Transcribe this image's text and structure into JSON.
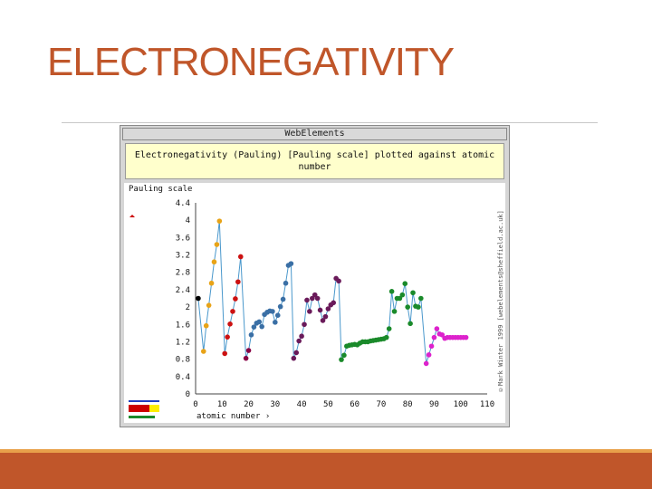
{
  "slide": {
    "title": "ELECTRONEGATIVITY"
  },
  "figure": {
    "header": "WebElements",
    "caption_line1": "Electronegativity (Pauling) [Pauling scale] plotted against atomic",
    "caption_line2": "number",
    "credit": "©Mark Winter 1999 [webelements@sheffield.ac.uk]"
  },
  "chart_data": {
    "type": "line",
    "ylabel": "Pauling scale",
    "xlabel": "atomic number ›",
    "xlim": [
      0,
      110
    ],
    "ylim": [
      0,
      4.4
    ],
    "x_ticks": [
      "0",
      "10",
      "20",
      "30",
      "40",
      "50",
      "60",
      "70",
      "80",
      "90",
      "100",
      "110"
    ],
    "y_ticks": [
      "0",
      "0.4",
      "0.8",
      "1.2",
      "1.6",
      "2",
      "2.4",
      "2.8",
      "3.2",
      "3.6",
      "4",
      "4.4"
    ],
    "line_color": "#4a98cc",
    "series": [
      {
        "color": "#000000",
        "points": [
          [
            1,
            2.2
          ]
        ]
      },
      {
        "color": "#e8a317",
        "points": [
          [
            3,
            0.98
          ],
          [
            4,
            1.57
          ],
          [
            5,
            2.04
          ],
          [
            6,
            2.55
          ],
          [
            7,
            3.04
          ],
          [
            8,
            3.44
          ],
          [
            9,
            3.98
          ]
        ]
      },
      {
        "color": "#cc1111",
        "points": [
          [
            11,
            0.93
          ],
          [
            12,
            1.31
          ],
          [
            13,
            1.61
          ],
          [
            14,
            1.9
          ],
          [
            15,
            2.19
          ],
          [
            16,
            2.58
          ],
          [
            17,
            3.16
          ]
        ]
      },
      {
        "color": "#880044",
        "points": [
          [
            19,
            0.82
          ],
          [
            20,
            1.0
          ]
        ]
      },
      {
        "color": "#3a6fa5",
        "points": [
          [
            21,
            1.36
          ],
          [
            22,
            1.54
          ],
          [
            23,
            1.63
          ],
          [
            24,
            1.66
          ],
          [
            25,
            1.55
          ],
          [
            26,
            1.83
          ],
          [
            27,
            1.88
          ],
          [
            28,
            1.91
          ],
          [
            29,
            1.9
          ],
          [
            30,
            1.65
          ],
          [
            31,
            1.81
          ],
          [
            32,
            2.01
          ],
          [
            33,
            2.18
          ],
          [
            34,
            2.55
          ],
          [
            35,
            2.96
          ],
          [
            36,
            3.0
          ]
        ]
      },
      {
        "color": "#6a1a5a",
        "points": [
          [
            37,
            0.82
          ],
          [
            38,
            0.95
          ],
          [
            39,
            1.22
          ],
          [
            40,
            1.33
          ],
          [
            41,
            1.6
          ],
          [
            42,
            2.16
          ],
          [
            43,
            1.9
          ],
          [
            44,
            2.2
          ],
          [
            45,
            2.28
          ],
          [
            46,
            2.2
          ],
          [
            47,
            1.93
          ],
          [
            48,
            1.69
          ],
          [
            49,
            1.78
          ],
          [
            50,
            1.96
          ],
          [
            51,
            2.05
          ],
          [
            52,
            2.1
          ],
          [
            53,
            2.66
          ],
          [
            54,
            2.6
          ]
        ]
      },
      {
        "color": "#1a8a2a",
        "points": [
          [
            55,
            0.79
          ],
          [
            56,
            0.89
          ],
          [
            57,
            1.1
          ],
          [
            58,
            1.12
          ],
          [
            59,
            1.13
          ],
          [
            60,
            1.14
          ],
          [
            61,
            1.13
          ],
          [
            62,
            1.17
          ],
          [
            63,
            1.2
          ],
          [
            64,
            1.2
          ],
          [
            65,
            1.2
          ],
          [
            66,
            1.22
          ],
          [
            67,
            1.23
          ],
          [
            68,
            1.24
          ],
          [
            69,
            1.25
          ],
          [
            70,
            1.26
          ],
          [
            71,
            1.27
          ],
          [
            72,
            1.3
          ],
          [
            73,
            1.5
          ],
          [
            74,
            2.36
          ],
          [
            75,
            1.9
          ],
          [
            76,
            2.2
          ],
          [
            77,
            2.2
          ],
          [
            78,
            2.28
          ],
          [
            79,
            2.54
          ],
          [
            80,
            2.0
          ],
          [
            81,
            1.62
          ],
          [
            82,
            2.33
          ],
          [
            83,
            2.02
          ],
          [
            84,
            2.0
          ],
          [
            85,
            2.2
          ]
        ]
      },
      {
        "color": "#dd22cc",
        "points": [
          [
            87,
            0.7
          ],
          [
            88,
            0.9
          ],
          [
            89,
            1.1
          ],
          [
            90,
            1.3
          ],
          [
            91,
            1.5
          ],
          [
            92,
            1.38
          ],
          [
            93,
            1.36
          ],
          [
            94,
            1.28
          ],
          [
            95,
            1.3
          ],
          [
            96,
            1.3
          ],
          [
            97,
            1.3
          ],
          [
            98,
            1.3
          ],
          [
            99,
            1.3
          ],
          [
            100,
            1.3
          ],
          [
            101,
            1.3
          ],
          [
            102,
            1.3
          ]
        ]
      }
    ]
  }
}
